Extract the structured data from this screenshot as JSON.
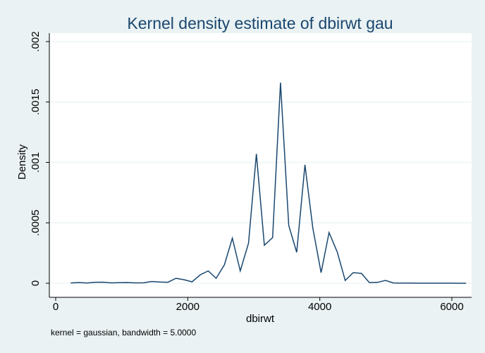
{
  "chart_data": {
    "type": "line",
    "title": "Kernel density estimate of dbirwt gau",
    "xlabel": "dbirwt",
    "ylabel": "Density",
    "note": "kernel = gaussian, bandwidth = 5.0000",
    "xlim": [
      0,
      6300
    ],
    "ylim": [
      0,
      0.002
    ],
    "x_ticks": [
      {
        "value": 0,
        "label": "0"
      },
      {
        "value": 2000,
        "label": "2000"
      },
      {
        "value": 4000,
        "label": "4000"
      },
      {
        "value": 6000,
        "label": "6000"
      }
    ],
    "y_ticks": [
      {
        "value": 0,
        "label": "0"
      },
      {
        "value": 0.0005,
        "label": ".0005"
      },
      {
        "value": 0.001,
        "label": ".001"
      },
      {
        "value": 0.0015,
        "label": ".0015"
      },
      {
        "value": 0.002,
        "label": ".002"
      }
    ],
    "grid": true,
    "colors": {
      "background": "#eaf2f3",
      "plot": "#ffffff",
      "line": "#1a476f",
      "title": "#1a476f"
    },
    "series": [
      {
        "x": [
          227,
          350,
          475,
          600,
          720,
          845,
          965,
          1090,
          1210,
          1330,
          1455,
          1575,
          1700,
          1820,
          1945,
          2065,
          2190,
          2310,
          2430,
          2555,
          2675,
          2795,
          2920,
          3040,
          3160,
          3285,
          3405,
          3530,
          3650,
          3775,
          3895,
          4020,
          4140,
          4265,
          4385,
          4505,
          4630,
          4750,
          4870,
          4995,
          5115,
          5240,
          5360,
          5480,
          5605,
          5725,
          5845,
          5970,
          6090,
          6215
        ],
        "y": [
          2.6e-06,
          5.8e-06,
          2.6e-06,
          8.2e-06,
          8.7e-06,
          2.9e-06,
          5.2e-06,
          5.9e-06,
          2.9e-06,
          3.5e-06,
          1.46e-05,
          9.9e-06,
          8.2e-06,
          4.08e-05,
          2.92e-05,
          1.17e-05,
          7e-05,
          0.000102,
          4.08e-05,
          0.000152,
          0.000373,
          0.000102,
          0.00033,
          0.00107,
          0.000315,
          0.000377,
          0.00166,
          0.000478,
          0.000256,
          0.00098,
          0.000455,
          8.75e-05,
          0.00042,
          0.000257,
          2.3e-05,
          8.75e-05,
          8.16e-05,
          5.8e-06,
          7e-06,
          2.33e-05,
          2.3e-06,
          1.7e-06,
          1.2e-06,
          6e-07,
          6e-07,
          4e-07,
          4e-07,
          4e-07,
          2e-07,
          2e-07
        ]
      }
    ]
  }
}
